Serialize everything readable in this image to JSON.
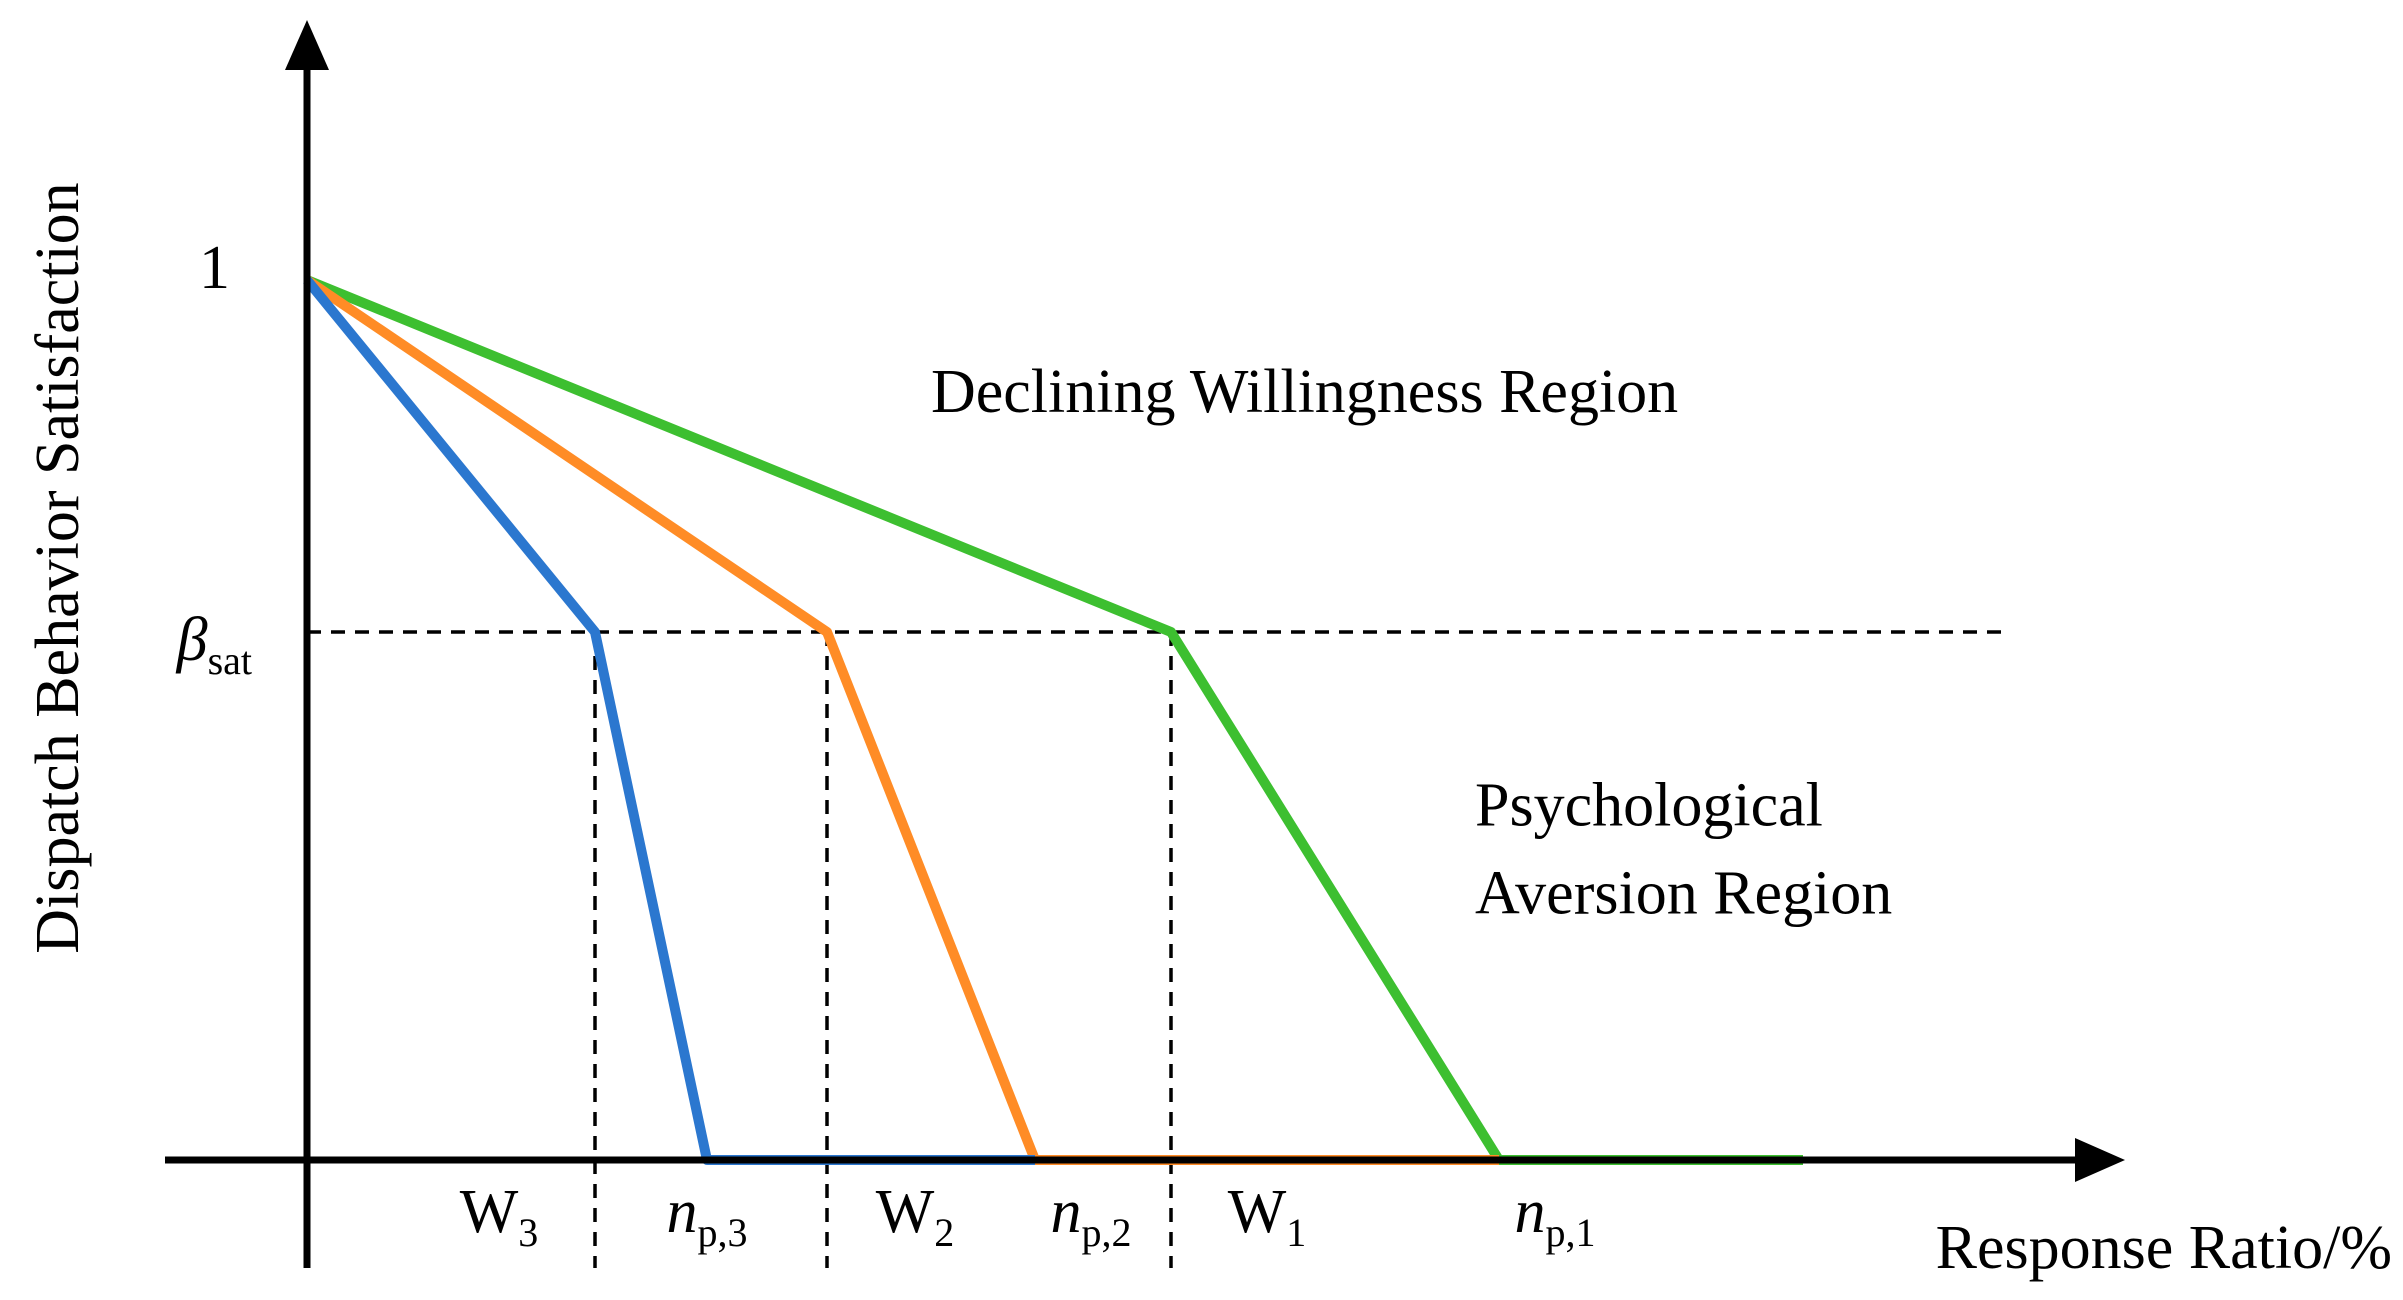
{
  "chart_data": {
    "type": "line",
    "title": "",
    "xlabel": "Response Ratio/%",
    "ylabel": "Dispatch Behavior Satisfaction",
    "xlim": [
      0,
      10.9
    ],
    "ylim": [
      0,
      1.18
    ],
    "y_ticks": [
      {
        "value": 1,
        "label": "1"
      },
      {
        "value": 0.6,
        "label": "β",
        "subscript": "sat"
      }
    ],
    "threshold": {
      "value": 0.6,
      "label": "β",
      "subscript": "sat"
    },
    "x_markers": [
      {
        "value": 1.8,
        "kind": "dashed"
      },
      {
        "value": 3.25,
        "kind": "dashed"
      },
      {
        "value": 5.4,
        "kind": "dashed"
      }
    ],
    "x_labels": [
      {
        "value": 1.2,
        "main": "W",
        "sub": "3",
        "italic": false
      },
      {
        "value": 2.5,
        "main": "n",
        "sub": "p,3",
        "italic": true
      },
      {
        "value": 3.8,
        "main": "W",
        "sub": "2",
        "italic": false
      },
      {
        "value": 4.9,
        "main": "n",
        "sub": "p,2",
        "italic": true
      },
      {
        "value": 6.0,
        "main": "W",
        "sub": "1",
        "italic": false
      },
      {
        "value": 7.8,
        "main": "n",
        "sub": "p,1",
        "italic": true
      }
    ],
    "annotations": [
      {
        "lines": [
          "Declining Willingness Region"
        ],
        "x": 3.9,
        "y": 0.85
      },
      {
        "lines": [
          "Psychological",
          "Aversion Region"
        ],
        "x": 7.3,
        "y": 0.38
      }
    ],
    "series": [
      {
        "color": "#3DBF30",
        "x": [
          0,
          5.4,
          7.45,
          9.35
        ],
        "y": [
          1,
          0.6,
          0,
          0
        ]
      },
      {
        "color": "#FF8C26",
        "x": [
          0,
          3.25,
          4.55,
          7.45
        ],
        "y": [
          1,
          0.6,
          0,
          0
        ]
      },
      {
        "color": "#2B77CF",
        "x": [
          0,
          1.8,
          2.5,
          4.55
        ],
        "y": [
          1,
          0.6,
          0,
          0
        ]
      }
    ]
  }
}
